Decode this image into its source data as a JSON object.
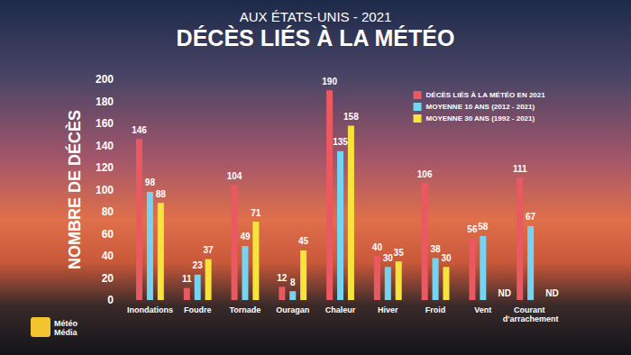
{
  "chart_data": {
    "type": "bar",
    "subtitle": "AUX ÉTATS-UNIS - 2021",
    "title": "DÉCÈS LIÉS À LA MÉTÉO",
    "y_label": "NOMBRE DE DÉCÈS",
    "annotations": [
      "Météo Média"
    ],
    "categories": [
      "Inondations",
      "Foudre",
      "Tornade",
      "Ouragan",
      "Chaleur",
      "Hiver",
      "Froid",
      "Vent",
      "Courant d'arrachement"
    ],
    "series": [
      {
        "name": "DÉCÈS LIÉS À LA MÉTÉO EN 2021",
        "color": "#ea5862",
        "values": [
          146,
          11,
          104,
          12,
          190,
          40,
          106,
          56,
          111
        ]
      },
      {
        "name": "MOYENNE 10 ANS (2012 - 2021)",
        "color": "#74d4f2",
        "values": [
          98,
          23,
          49,
          8,
          135,
          30,
          38,
          58,
          67
        ]
      },
      {
        "name": "MOYENNE 30 ANS (1992 - 2021)",
        "color": "#f6e43c",
        "values": [
          88,
          37,
          71,
          45,
          158,
          35,
          30,
          null,
          null
        ],
        "value_labels": [
          "88",
          "37",
          "71",
          "45",
          "158",
          "35",
          "30",
          "ND",
          "ND"
        ]
      }
    ],
    "ylim": [
      0,
      200
    ],
    "yticks": [
      0,
      20,
      40,
      60,
      80,
      100,
      120,
      140,
      160,
      180,
      200
    ],
    "grid": false,
    "legend": "top-right",
    "data_labels": true
  }
}
